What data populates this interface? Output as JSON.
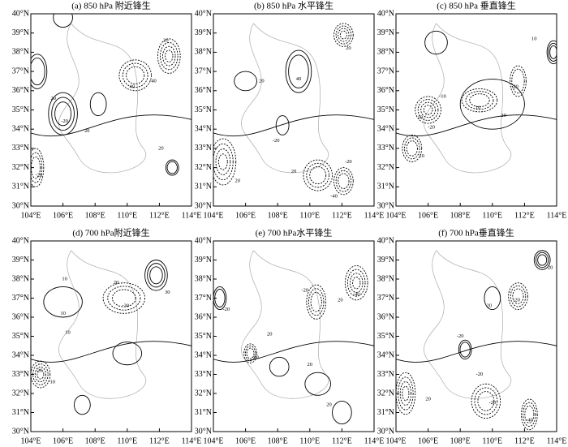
{
  "chart_data": [
    {
      "type": "contour",
      "title": "(a) 850 hPa 附近锋生",
      "xlim": [
        104,
        114
      ],
      "ylim": [
        30,
        40
      ],
      "xticks": [
        {
          "value": 104,
          "label": "104°E"
        },
        {
          "value": 106,
          "label": "106°E"
        },
        {
          "value": 108,
          "label": "108°E"
        },
        {
          "value": 110,
          "label": "110°E"
        },
        {
          "value": 112,
          "label": "112°E"
        },
        {
          "value": 114,
          "label": "114°E"
        }
      ],
      "yticks": [
        {
          "value": 30,
          "label": "30°N"
        },
        {
          "value": 31,
          "label": "31°N"
        },
        {
          "value": 32,
          "label": "32°N"
        },
        {
          "value": 33,
          "label": "33°N"
        },
        {
          "value": 34,
          "label": "34°N"
        },
        {
          "value": 35,
          "label": "35°N"
        },
        {
          "value": 36,
          "label": "36°N"
        },
        {
          "value": 37,
          "label": "37°N"
        },
        {
          "value": 38,
          "label": "38°N"
        },
        {
          "value": 39,
          "label": "39°N"
        },
        {
          "value": 40,
          "label": "40°N"
        }
      ],
      "contour_labels": [
        20,
        -20,
        20,
        -40,
        40,
        20,
        -20,
        20
      ]
    },
    {
      "type": "contour",
      "title": "(b) 850 hPa 水平锋生",
      "xlim": [
        104,
        114
      ],
      "ylim": [
        30,
        40
      ],
      "xticks": [
        {
          "value": 104,
          "label": "104°E"
        },
        {
          "value": 106,
          "label": "106°E"
        },
        {
          "value": 108,
          "label": "108°E"
        },
        {
          "value": 110,
          "label": "110°E"
        },
        {
          "value": 112,
          "label": "112°E"
        },
        {
          "value": 114,
          "label": "114°E"
        }
      ],
      "yticks": [
        {
          "value": 30,
          "label": "30°N"
        },
        {
          "value": 31,
          "label": "31°N"
        },
        {
          "value": 32,
          "label": "32°N"
        },
        {
          "value": 33,
          "label": "33°N"
        },
        {
          "value": 34,
          "label": "34°N"
        },
        {
          "value": 35,
          "label": "35°N"
        },
        {
          "value": 36,
          "label": "36°N"
        },
        {
          "value": 37,
          "label": "37°N"
        },
        {
          "value": 38,
          "label": "38°N"
        },
        {
          "value": 39,
          "label": "39°N"
        },
        {
          "value": 40,
          "label": "40°N"
        }
      ],
      "contour_labels": [
        20,
        40,
        20,
        -20,
        20,
        -40,
        -20,
        20
      ]
    },
    {
      "type": "contour",
      "title": "(c) 850 hPa 垂直锋生",
      "xlim": [
        104,
        114
      ],
      "ylim": [
        30,
        40
      ],
      "xticks": [
        {
          "value": 104,
          "label": "104°E"
        },
        {
          "value": 106,
          "label": "106°E"
        },
        {
          "value": 108,
          "label": "108°E"
        },
        {
          "value": 110,
          "label": "110°E"
        },
        {
          "value": 112,
          "label": "112°E"
        },
        {
          "value": 114,
          "label": "114°E"
        }
      ],
      "yticks": [
        {
          "value": 30,
          "label": "30°N"
        },
        {
          "value": 31,
          "label": "31°N"
        },
        {
          "value": 32,
          "label": "32°N"
        },
        {
          "value": 33,
          "label": "33°N"
        },
        {
          "value": 34,
          "label": "34°N"
        },
        {
          "value": 35,
          "label": "35°N"
        },
        {
          "value": 36,
          "label": "36°N"
        },
        {
          "value": 37,
          "label": "37°N"
        },
        {
          "value": 38,
          "label": "38°N"
        },
        {
          "value": 39,
          "label": "39°N"
        },
        {
          "value": 40,
          "label": "40°N"
        }
      ],
      "contour_labels": [
        10,
        -10,
        10,
        -20,
        10,
        20,
        -20,
        10
      ]
    },
    {
      "type": "contour",
      "title": "(d) 700 hPa附近锋生",
      "xlim": [
        104,
        114
      ],
      "ylim": [
        30,
        40
      ],
      "xticks": [
        {
          "value": 104,
          "label": "104°E"
        },
        {
          "value": 106,
          "label": "106°E"
        },
        {
          "value": 108,
          "label": "108°E"
        },
        {
          "value": 110,
          "label": "110°E"
        },
        {
          "value": 112,
          "label": "112°E"
        },
        {
          "value": 114,
          "label": "114°E"
        }
      ],
      "yticks": [
        {
          "value": 30,
          "label": "30°N"
        },
        {
          "value": 31,
          "label": "31°N"
        },
        {
          "value": 32,
          "label": "32°N"
        },
        {
          "value": 33,
          "label": "33°N"
        },
        {
          "value": 34,
          "label": "34°N"
        },
        {
          "value": 35,
          "label": "35°N"
        },
        {
          "value": 36,
          "label": "36°N"
        },
        {
          "value": 37,
          "label": "37°N"
        },
        {
          "value": 38,
          "label": "38°N"
        },
        {
          "value": 39,
          "label": "39°N"
        },
        {
          "value": 40,
          "label": "40°N"
        }
      ],
      "contour_labels": [
        10,
        20,
        -30,
        10,
        30,
        -20,
        -10,
        10
      ]
    },
    {
      "type": "contour",
      "title": "(e) 700 hPa水平锋生",
      "xlim": [
        104,
        114
      ],
      "ylim": [
        30,
        40
      ],
      "xticks": [
        {
          "value": 104,
          "label": "104°E"
        },
        {
          "value": 106,
          "label": "106°E"
        },
        {
          "value": 108,
          "label": "108°E"
        },
        {
          "value": 110,
          "label": "110°E"
        },
        {
          "value": 112,
          "label": "112°E"
        },
        {
          "value": 114,
          "label": "114°E"
        }
      ],
      "yticks": [
        {
          "value": 30,
          "label": "30°N"
        },
        {
          "value": 31,
          "label": "31°N"
        },
        {
          "value": 32,
          "label": "32°N"
        },
        {
          "value": 33,
          "label": "33°N"
        },
        {
          "value": 34,
          "label": "34°N"
        },
        {
          "value": 35,
          "label": "35°N"
        },
        {
          "value": 36,
          "label": "36°N"
        },
        {
          "value": 37,
          "label": "37°N"
        },
        {
          "value": 38,
          "label": "38°N"
        },
        {
          "value": 39,
          "label": "39°N"
        },
        {
          "value": 40,
          "label": "40°N"
        }
      ],
      "contour_labels": [
        -20,
        20,
        -40,
        20,
        -20,
        20,
        -20,
        20
      ]
    },
    {
      "type": "contour",
      "title": "(f) 700 hPa垂直锋生",
      "xlim": [
        104,
        114
      ],
      "ylim": [
        30,
        40
      ],
      "xticks": [
        {
          "value": 104,
          "label": "104°E"
        },
        {
          "value": 106,
          "label": "106°E"
        },
        {
          "value": 108,
          "label": "108°E"
        },
        {
          "value": 110,
          "label": "110°E"
        },
        {
          "value": 112,
          "label": "112°E"
        },
        {
          "value": 114,
          "label": "114°E"
        }
      ],
      "yticks": [
        {
          "value": 30,
          "label": "30°N"
        },
        {
          "value": 31,
          "label": "31°N"
        },
        {
          "value": 32,
          "label": "32°N"
        },
        {
          "value": 33,
          "label": "33°N"
        },
        {
          "value": 34,
          "label": "34°N"
        },
        {
          "value": 35,
          "label": "35°N"
        },
        {
          "value": 36,
          "label": "36°N"
        },
        {
          "value": 37,
          "label": "37°N"
        },
        {
          "value": 38,
          "label": "38°N"
        },
        {
          "value": 39,
          "label": "39°N"
        },
        {
          "value": 40,
          "label": "40°N"
        }
      ],
      "contour_labels": [
        20,
        -20,
        20,
        -20,
        20,
        -20,
        -40,
        -20
      ]
    }
  ]
}
